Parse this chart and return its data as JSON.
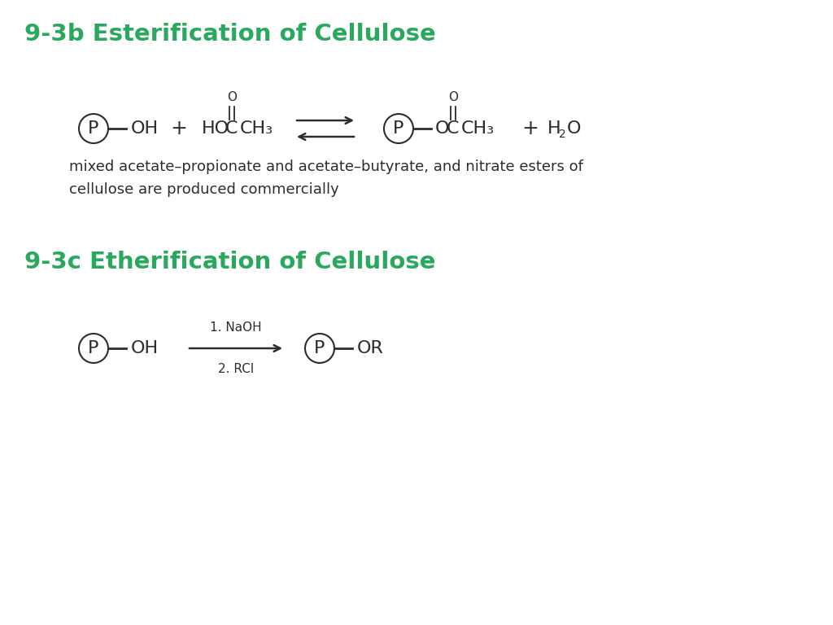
{
  "title1": "9-3b Esterification of Cellulose",
  "title2": "9-3c Etherification of Cellulose",
  "green": "#29a85e",
  "black": "#2d2d2d",
  "bg_color": "#ffffff",
  "note_text": "mixed acetate–propionate and acetate–butyrate, and nitrate esters of\ncellulose are produced commercially",
  "fs_title": 21,
  "fs_chem": 16,
  "fs_sub": 11,
  "fs_note": 13,
  "fs_small": 10
}
